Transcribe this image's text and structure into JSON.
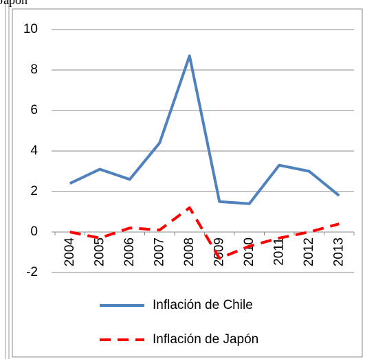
{
  "chart_data": {
    "type": "line",
    "title": "Japón",
    "categories": [
      "2004",
      "2005",
      "2006",
      "2007",
      "2008",
      "2009",
      "2010",
      "2011",
      "2012",
      "2013"
    ],
    "series": [
      {
        "name": "Inflación de Chile",
        "color": "#4f81bd",
        "dashed": false,
        "values": [
          2.4,
          3.1,
          2.6,
          4.4,
          8.7,
          1.5,
          1.4,
          3.3,
          3.0,
          1.8
        ]
      },
      {
        "name": "Inflación de Japón",
        "color": "#ff0000",
        "dashed": true,
        "values": [
          0.0,
          -0.3,
          0.2,
          0.1,
          1.2,
          -1.3,
          -0.7,
          -0.3,
          0.0,
          0.4
        ]
      }
    ],
    "ylim": [
      -2,
      10
    ],
    "yticks": [
      -2,
      0,
      2,
      4,
      6,
      8,
      10
    ],
    "grid": true,
    "legend": "bottom"
  }
}
